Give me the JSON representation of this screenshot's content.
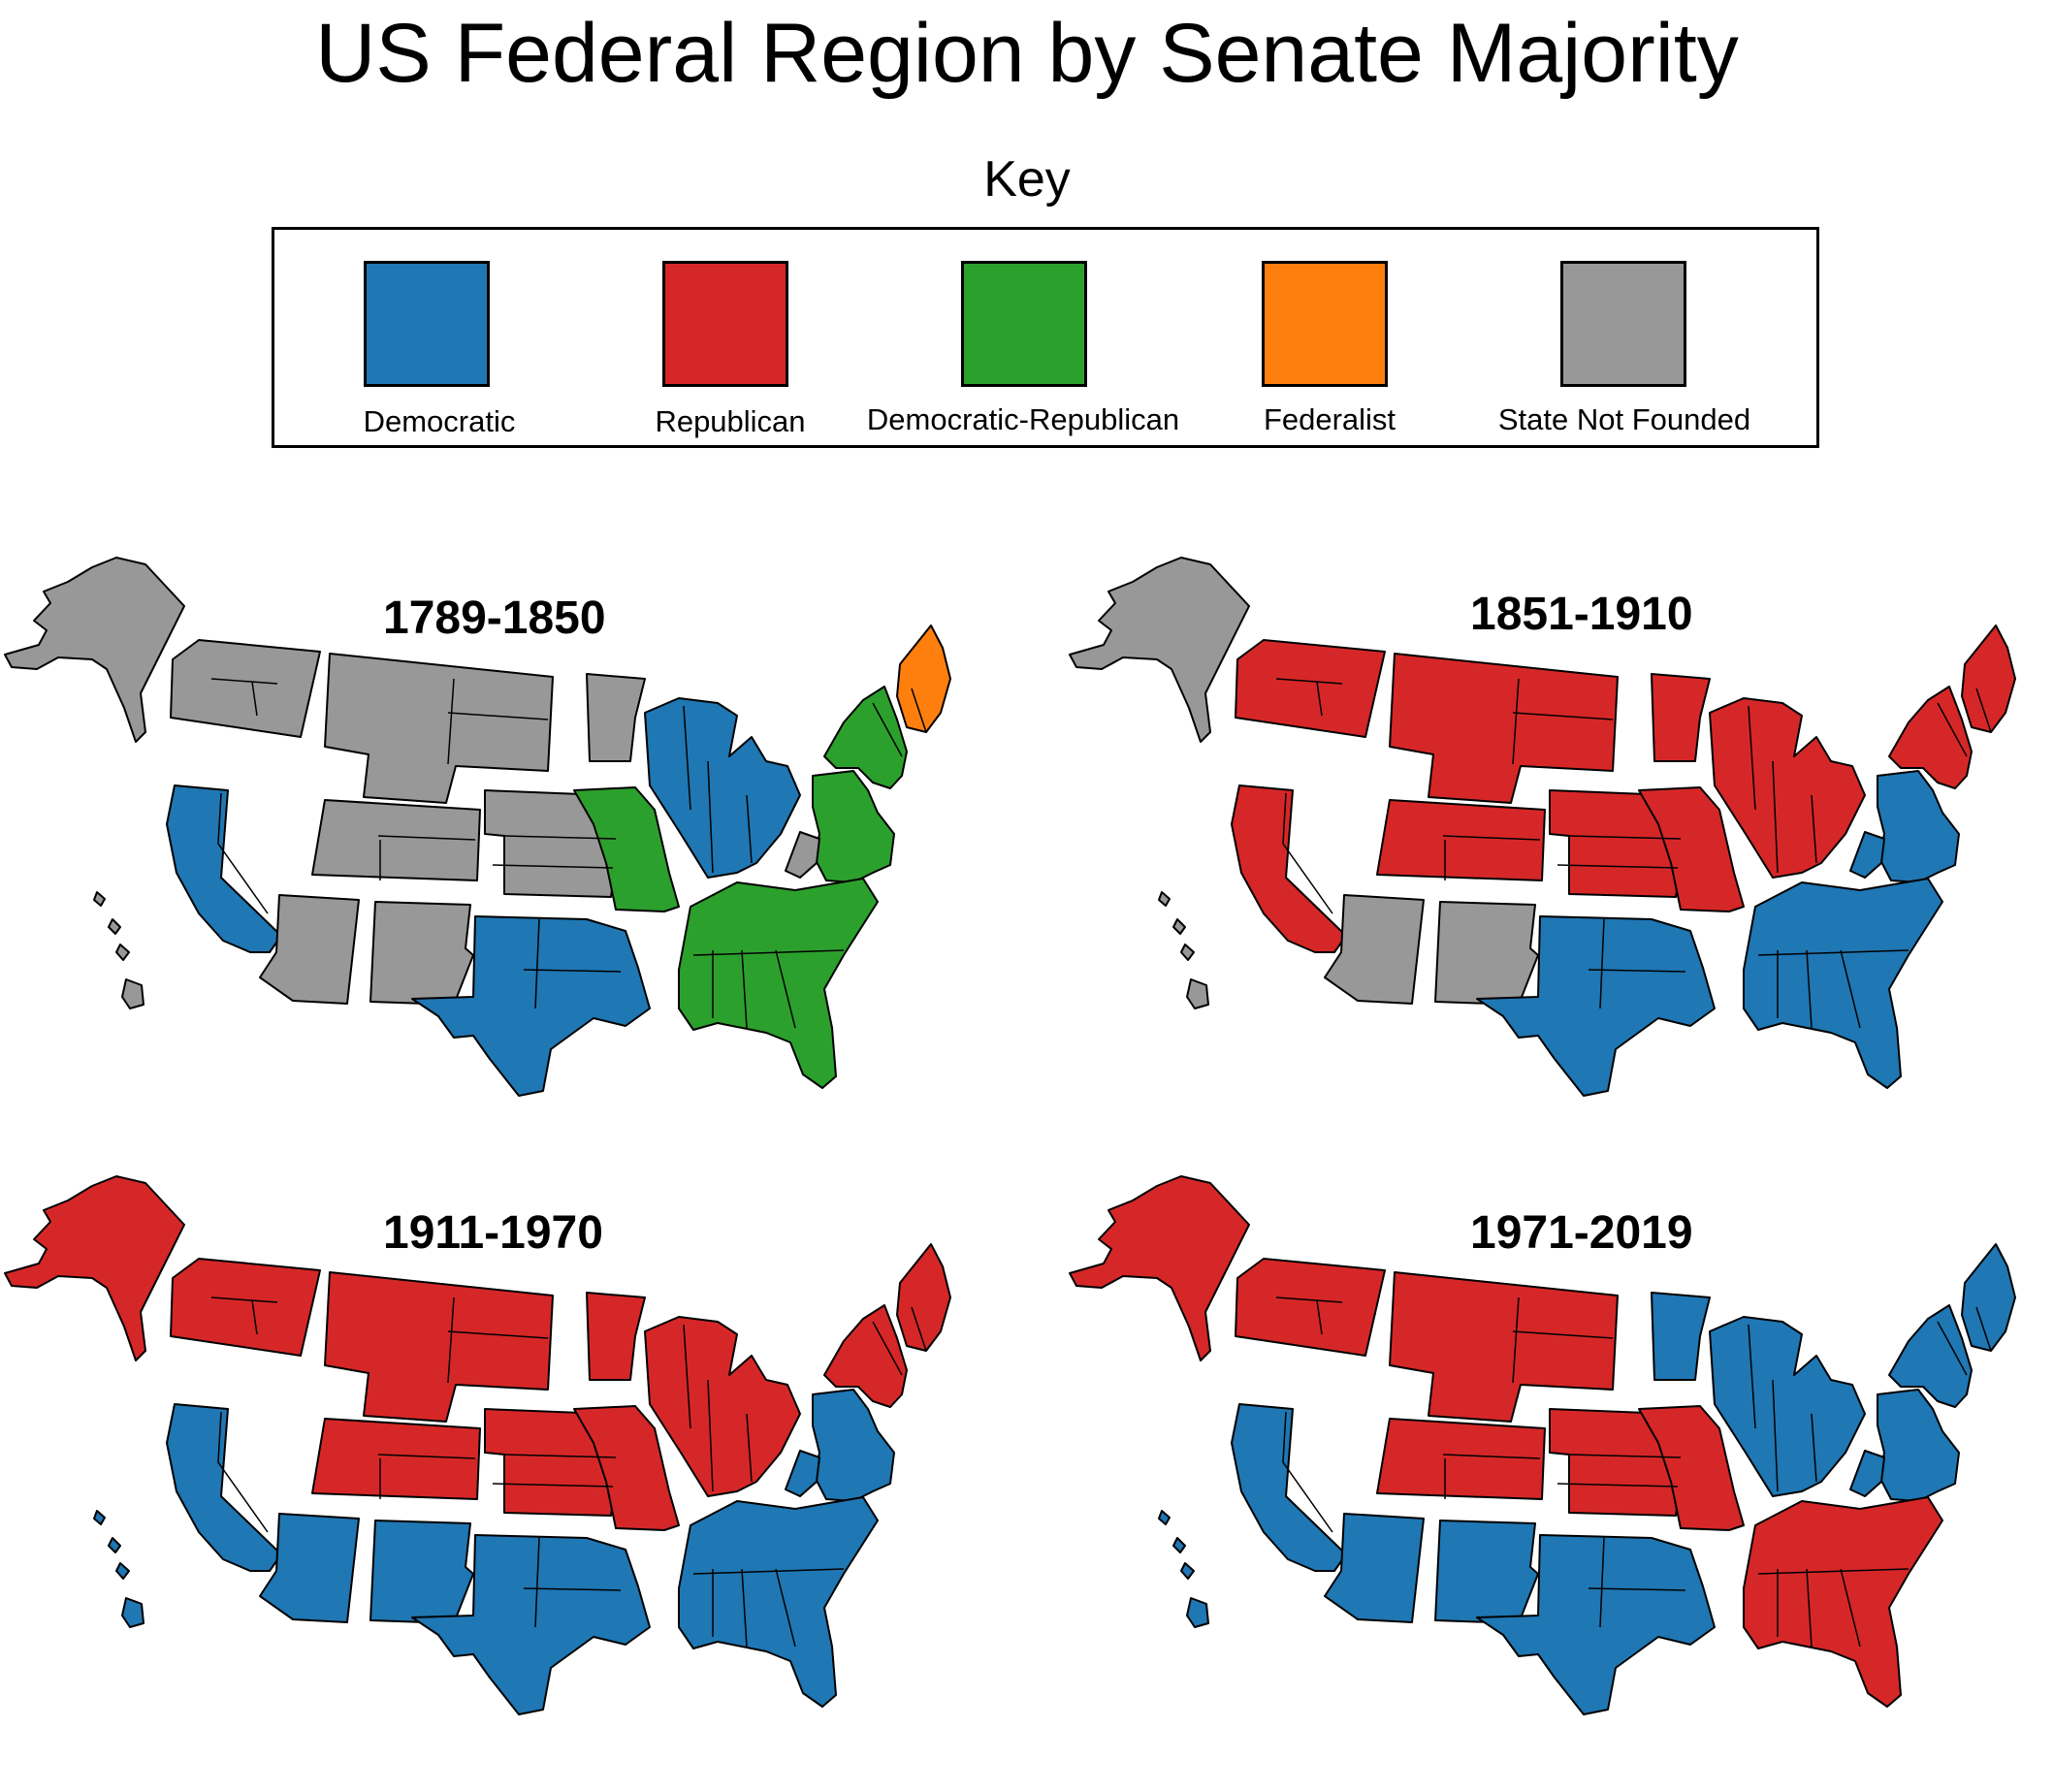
{
  "title": "US Federal Region by Senate Majority",
  "key": {
    "heading": "Key",
    "items": [
      {
        "label": "Democratic",
        "color": "#1f77b4"
      },
      {
        "label": "Republican",
        "color": "#d62728"
      },
      {
        "label": "Democratic-Republican",
        "color": "#2ca02c"
      },
      {
        "label": "Federalist",
        "color": "#ff7f0e"
      },
      {
        "label": "State Not Founded",
        "color": "#989898"
      }
    ]
  },
  "maps": [
    {
      "period": "1789-1850",
      "regions": {
        "alaska": "State Not Founded",
        "hawaii": "State Not Founded",
        "northwest": "State Not Founded",
        "pacific": "Democratic",
        "northern_plains": "State Not Founded",
        "mountain": "State Not Founded",
        "central_plains": "State Not Founded",
        "southwest": "State Not Founded",
        "south_central": "Democratic",
        "upper_midwest": "State Not Founded",
        "great_lakes": "Democratic",
        "mid_mississippi": "Democratic-Republican",
        "mid_atlantic": "Democratic-Republican",
        "west_virginia": "State Not Founded",
        "new_york": "Democratic-Republican",
        "new_england": "Federalist",
        "southeast": "Democratic-Republican"
      }
    },
    {
      "period": "1851-1910",
      "regions": {
        "alaska": "State Not Founded",
        "hawaii": "State Not Founded",
        "northwest": "Republican",
        "pacific": "Republican",
        "northern_plains": "Republican",
        "mountain": "Republican",
        "central_plains": "Republican",
        "southwest": "State Not Founded",
        "south_central": "Democratic",
        "upper_midwest": "Republican",
        "great_lakes": "Republican",
        "mid_mississippi": "Republican",
        "mid_atlantic": "Democratic",
        "west_virginia": "Democratic",
        "new_york": "Republican",
        "new_england": "Republican",
        "southeast": "Democratic"
      }
    },
    {
      "period": "1911-1970",
      "regions": {
        "alaska": "Republican",
        "hawaii": "Democratic",
        "northwest": "Republican",
        "pacific": "Democratic",
        "northern_plains": "Republican",
        "mountain": "Republican",
        "central_plains": "Republican",
        "southwest": "Democratic",
        "south_central": "Democratic",
        "upper_midwest": "Republican",
        "great_lakes": "Republican",
        "mid_mississippi": "Republican",
        "mid_atlantic": "Democratic",
        "west_virginia": "Democratic",
        "new_york": "Republican",
        "new_england": "Republican",
        "southeast": "Democratic"
      }
    },
    {
      "period": "1971-2019",
      "regions": {
        "alaska": "Republican",
        "hawaii": "Democratic",
        "northwest": "Republican",
        "pacific": "Democratic",
        "northern_plains": "Republican",
        "mountain": "Republican",
        "central_plains": "Republican",
        "southwest": "Democratic",
        "south_central": "Democratic",
        "upper_midwest": "Democratic",
        "great_lakes": "Democratic",
        "mid_mississippi": "Republican",
        "mid_atlantic": "Democratic",
        "west_virginia": "Democratic",
        "new_york": "Democratic",
        "new_england": "Democratic",
        "southeast": "Republican"
      }
    }
  ]
}
